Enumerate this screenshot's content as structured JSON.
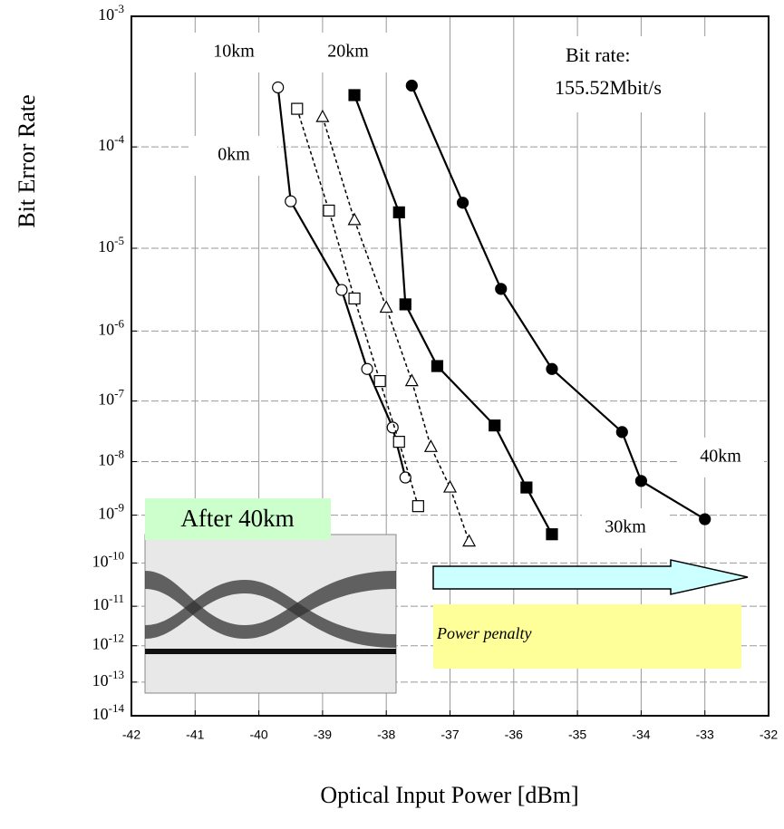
{
  "chart_data": {
    "type": "line",
    "x_label": "Optical Input Power   [dBm]",
    "y_label": "Bit Error Rate",
    "yscale": "loglog",
    "grid": true,
    "xlim": [
      -42,
      -32
    ],
    "xticks": [
      -42,
      -41,
      -40,
      -39,
      -38,
      -37,
      -36,
      -35,
      -34,
      -33,
      -32
    ],
    "ylim": [
      1e-14,
      0.001
    ],
    "yticks": [
      {
        "value": 0.001,
        "label": "10-3"
      },
      {
        "value": 0.0001,
        "label": "10-4"
      },
      {
        "value": 1e-05,
        "label": "10-5"
      },
      {
        "value": 1e-06,
        "label": "10-6"
      },
      {
        "value": 1e-07,
        "label": "10-7"
      },
      {
        "value": 1e-08,
        "label": "10-8"
      },
      {
        "value": 1e-09,
        "label": "10-9"
      },
      {
        "value": 1e-10,
        "label": "10-10"
      },
      {
        "value": 1e-11,
        "label": "10-11"
      },
      {
        "value": 1e-12,
        "label": "10-12"
      },
      {
        "value": 1e-13,
        "label": "10-13"
      },
      {
        "value": 1e-14,
        "label": "10-14"
      }
    ],
    "series": [
      {
        "name": "0km",
        "color": "#000000",
        "marker": "circle",
        "filled": false,
        "dash": false,
        "x": [
          -39.7,
          -39.5,
          -38.7,
          -38.3,
          -37.9,
          -37.7
        ],
        "values": [
          0.00031,
          3.1e-05,
          3.3e-06,
          3e-07,
          3.8e-08,
          5.2e-09
        ]
      },
      {
        "name": "10km",
        "color": "#000000",
        "marker": "square",
        "filled": false,
        "dash": true,
        "x": [
          -39.4,
          -38.9,
          -38.5,
          -38.1,
          -37.8,
          -37.5
        ],
        "values": [
          0.00021,
          2.5e-05,
          2.6e-06,
          2e-07,
          2.2e-08,
          1.5e-09
        ]
      },
      {
        "name": "20km",
        "color": "#000000",
        "marker": "triangle",
        "filled": false,
        "dash": true,
        "x": [
          -39.0,
          -38.5,
          -38.0,
          -37.6,
          -37.3,
          -37.0,
          -36.7
        ],
        "values": [
          0.00018,
          2e-05,
          2e-06,
          2e-07,
          1.8e-08,
          3.4e-09,
          2.9e-10
        ]
      },
      {
        "name": "30km",
        "color": "#000000",
        "marker": "square",
        "filled": true,
        "dash": false,
        "x": [
          -38.5,
          -37.8,
          -37.7,
          -37.2,
          -36.3,
          -35.8,
          -35.4
        ],
        "values": [
          0.00027,
          2.4e-05,
          2.2e-06,
          3.3e-07,
          4.1e-08,
          3.4e-09,
          4.1e-10
        ]
      },
      {
        "name": "40km",
        "color": "#000000",
        "marker": "circle",
        "filled": true,
        "dash": false,
        "x": [
          -37.6,
          -36.8,
          -36.2,
          -35.4,
          -34.3,
          -34.0,
          -33.0
        ],
        "values": [
          0.00032,
          3e-05,
          3.4e-06,
          3e-07,
          3.2e-08,
          4.5e-09,
          8.3e-10
        ]
      }
    ],
    "bit_rate_label": [
      "Bit rate:",
      "155.52Mbit/s"
    ],
    "inset_label": "After 40km",
    "penalty_label": "Power penalty"
  }
}
